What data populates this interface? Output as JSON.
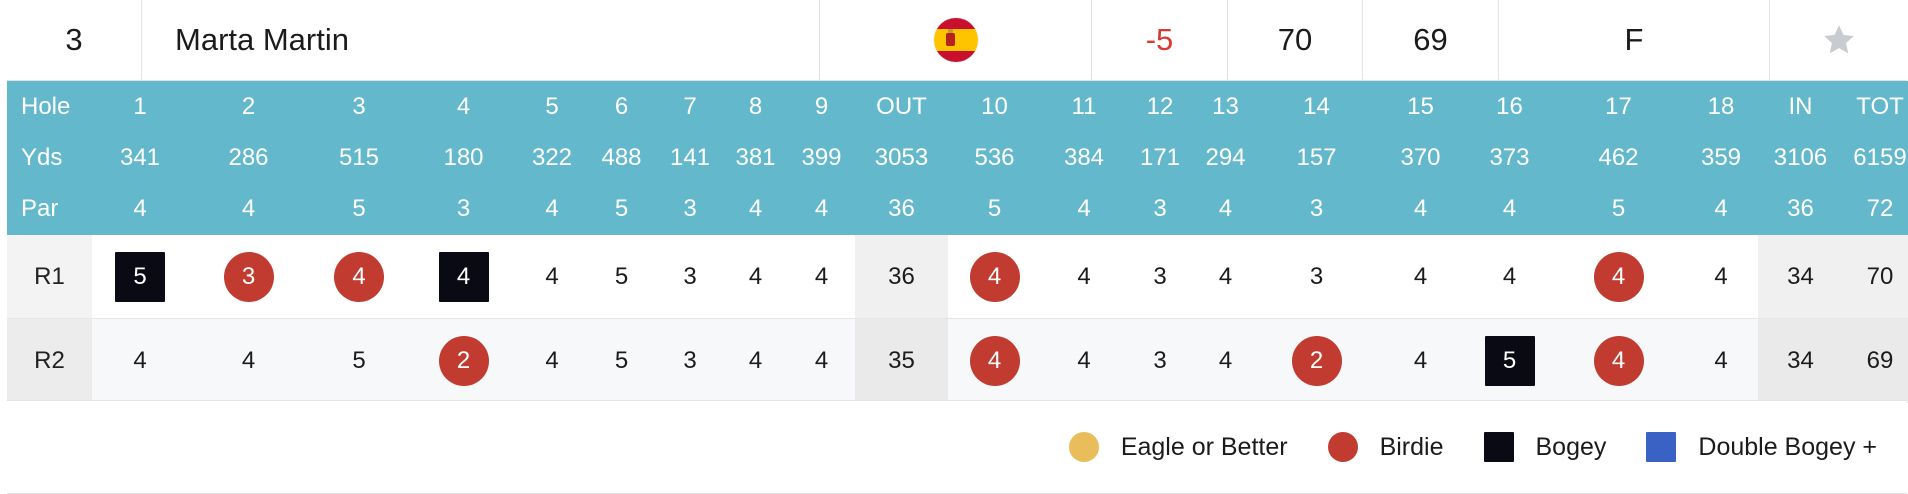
{
  "player": {
    "rank": "3",
    "name": "Marta Martin",
    "to_par": "-5",
    "round1": "70",
    "round2": "69",
    "thru": "F",
    "flag_icon": "spain-flag-icon",
    "favorite_icon": "star-icon"
  },
  "colors": {
    "header_bg": "#64b8cb",
    "to_par": "#d83a2f",
    "eagle": "#e9bd5a",
    "birdie": "#c13b30",
    "bogey": "#0a0a14",
    "double_bogey": "#3a62c4"
  },
  "scorecard": {
    "header": {
      "hole_label": "Hole",
      "yds_label": "Yds",
      "par_label": "Par",
      "holes": [
        "1",
        "2",
        "3",
        "4",
        "5",
        "6",
        "7",
        "8",
        "9",
        "OUT",
        "10",
        "11",
        "12",
        "13",
        "14",
        "15",
        "16",
        "17",
        "18",
        "IN",
        "TOT"
      ],
      "yards": [
        "341",
        "286",
        "515",
        "180",
        "322",
        "488",
        "141",
        "381",
        "399",
        "3053",
        "536",
        "384",
        "171",
        "294",
        "157",
        "370",
        "373",
        "462",
        "359",
        "3106",
        "6159"
      ],
      "pars": [
        "4",
        "4",
        "5",
        "3",
        "4",
        "5",
        "3",
        "4",
        "4",
        "36",
        "5",
        "4",
        "3",
        "4",
        "3",
        "4",
        "4",
        "5",
        "4",
        "36",
        "72"
      ]
    },
    "rounds": [
      {
        "label": "R1",
        "scores": [
          "5",
          "3",
          "4",
          "4",
          "4",
          "5",
          "3",
          "4",
          "4",
          "36",
          "4",
          "4",
          "3",
          "4",
          "3",
          "4",
          "4",
          "4",
          "4",
          "34",
          "70"
        ],
        "types": [
          "bogey",
          "birdie",
          "birdie",
          "bogey",
          "par",
          "par",
          "par",
          "par",
          "par",
          "sub",
          "birdie",
          "par",
          "par",
          "par",
          "par",
          "par",
          "par",
          "birdie",
          "par",
          "sub",
          "sub"
        ]
      },
      {
        "label": "R2",
        "scores": [
          "4",
          "4",
          "5",
          "2",
          "4",
          "5",
          "3",
          "4",
          "4",
          "35",
          "4",
          "4",
          "3",
          "4",
          "2",
          "4",
          "5",
          "4",
          "4",
          "34",
          "69"
        ],
        "types": [
          "par",
          "par",
          "par",
          "birdie",
          "par",
          "par",
          "par",
          "par",
          "par",
          "sub",
          "birdie",
          "par",
          "par",
          "par",
          "birdie",
          "par",
          "bogey",
          "birdie",
          "par",
          "sub",
          "sub"
        ]
      }
    ]
  },
  "legend": [
    {
      "label": "Eagle or Better",
      "shape": "circle",
      "color": "#e9bd5a",
      "icon": "eagle-circle-icon"
    },
    {
      "label": "Birdie",
      "shape": "circle",
      "color": "#c13b30",
      "icon": "birdie-circle-icon"
    },
    {
      "label": "Bogey",
      "shape": "square",
      "color": "#0a0a14",
      "icon": "bogey-square-icon"
    },
    {
      "label": "Double Bogey +",
      "shape": "square",
      "color": "#3a62c4",
      "icon": "double-bogey-square-icon"
    }
  ]
}
